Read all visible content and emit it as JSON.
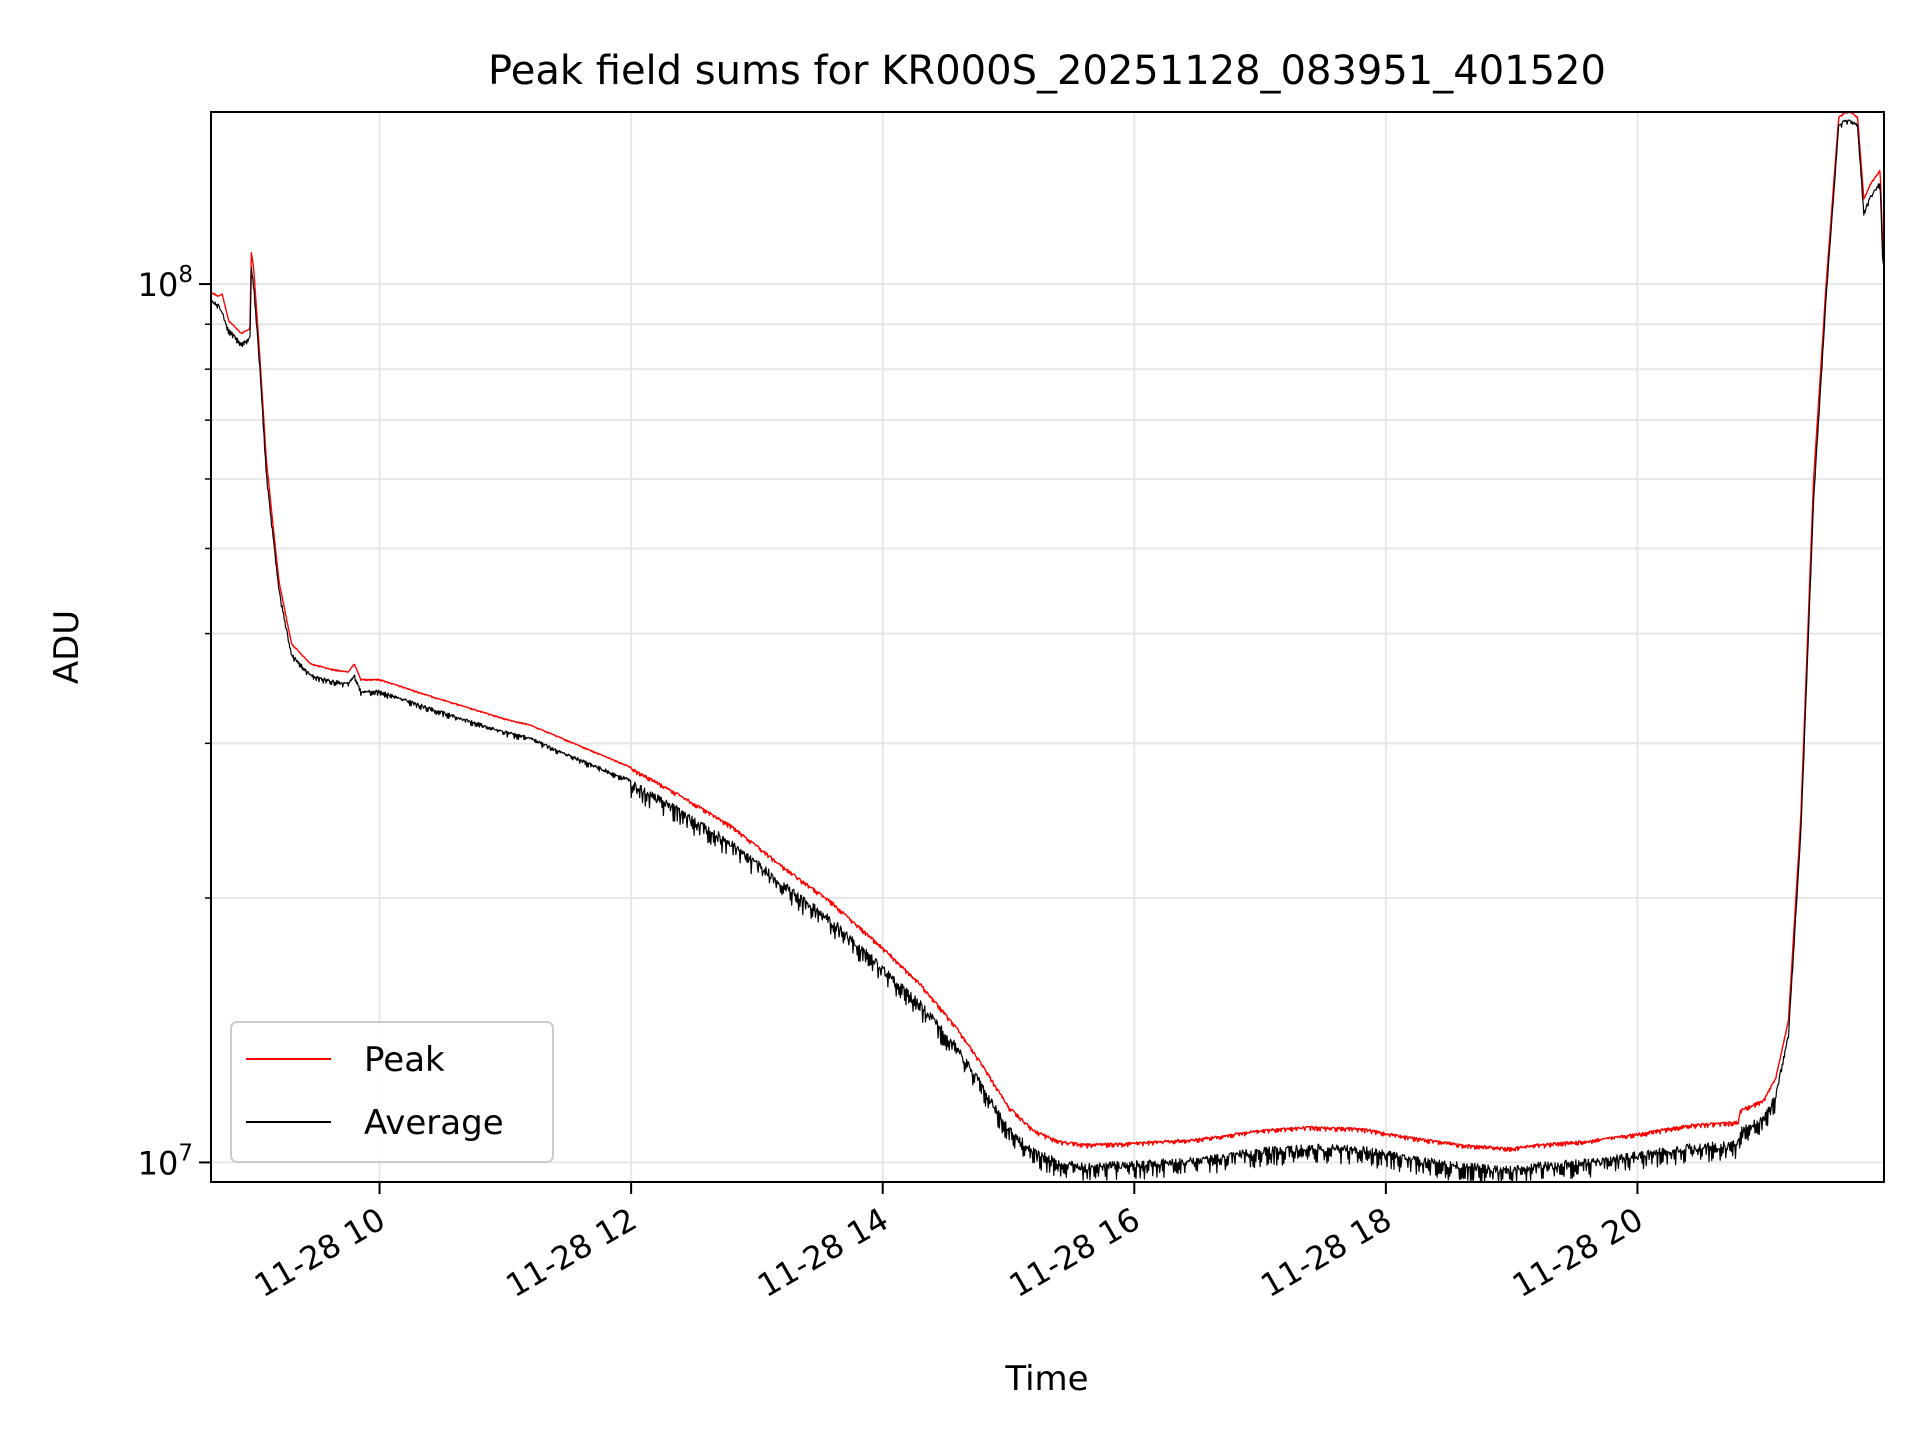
{
  "chart_data": {
    "type": "line",
    "title": "Peak field sums for KR000S_20251128_083951_401520",
    "xlabel": "Time",
    "ylabel": "ADU",
    "yscale": "log",
    "ylim": [
      9500000,
      157000000
    ],
    "xlim_hours": [
      8.66,
      21.96
    ],
    "grid": true,
    "legend_position": "lower-left",
    "x_ticks": [
      {
        "hour": 10,
        "label": "11-28 10"
      },
      {
        "hour": 12,
        "label": "11-28 12"
      },
      {
        "hour": 14,
        "label": "11-28 14"
      },
      {
        "hour": 16,
        "label": "11-28 16"
      },
      {
        "hour": 18,
        "label": "11-28 18"
      },
      {
        "hour": 20,
        "label": "11-28 20"
      }
    ],
    "y_major_ticks": [
      {
        "value": 10000000,
        "base": "10",
        "exp": "7"
      },
      {
        "value": 100000000,
        "base": "10",
        "exp": "8"
      }
    ],
    "y_minor_ticks": [
      20000000,
      30000000,
      40000000,
      50000000,
      60000000,
      70000000,
      80000000,
      90000000
    ],
    "series": [
      {
        "name": "Peak",
        "color": "#ff0000",
        "x_hours": [
          8.66,
          8.72,
          8.75,
          8.8,
          8.9,
          8.97,
          8.98,
          9.0,
          9.05,
          9.1,
          9.2,
          9.3,
          9.45,
          9.6,
          9.75,
          9.8,
          9.85,
          10.0,
          10.4,
          11.0,
          11.2,
          11.6,
          12.0,
          12.4,
          12.8,
          13.2,
          13.6,
          14.0,
          14.3,
          14.6,
          14.8,
          15.0,
          15.2,
          15.4,
          15.6,
          16.0,
          16.5,
          17.0,
          17.4,
          17.8,
          18.2,
          18.6,
          19.0,
          19.2,
          19.4,
          19.6,
          20.0,
          20.4,
          20.8,
          20.82,
          21.0,
          21.1,
          21.2,
          21.3,
          21.4,
          21.5,
          21.6,
          21.65,
          21.7,
          21.75,
          21.8,
          21.85,
          21.9,
          21.93,
          21.95
        ],
        "y": [
          98000000,
          97000000,
          97500000,
          91000000,
          88000000,
          89000000,
          109000000,
          104000000,
          82000000,
          63000000,
          46000000,
          39000000,
          37000000,
          36500000,
          36200000,
          37000000,
          35500000,
          35500000,
          34000000,
          32000000,
          31500000,
          29800000,
          28200000,
          26200000,
          24200000,
          21800000,
          19800000,
          17600000,
          16000000,
          14200000,
          12900000,
          11600000,
          10900000,
          10600000,
          10500000,
          10550000,
          10650000,
          10900000,
          11000000,
          10950000,
          10700000,
          10500000,
          10400000,
          10500000,
          10550000,
          10600000,
          10800000,
          11050000,
          11150000,
          11500000,
          11800000,
          12500000,
          14500000,
          25000000,
          60000000,
          100000000,
          155000000,
          157000000,
          157000000,
          155000000,
          125000000,
          130000000,
          133000000,
          135000000,
          110000000
        ],
        "noise": 0.012
      },
      {
        "name": "Average",
        "color": "#000000",
        "x_hours": [
          8.66,
          8.72,
          8.75,
          8.8,
          8.9,
          8.97,
          8.98,
          9.0,
          9.05,
          9.1,
          9.2,
          9.3,
          9.45,
          9.6,
          9.75,
          9.8,
          9.85,
          10.0,
          10.4,
          11.0,
          11.2,
          11.6,
          12.0,
          12.4,
          12.8,
          13.2,
          13.6,
          14.0,
          14.3,
          14.6,
          14.8,
          15.0,
          15.2,
          15.4,
          15.6,
          16.0,
          16.5,
          17.0,
          17.4,
          17.8,
          18.2,
          18.6,
          19.0,
          19.2,
          19.4,
          19.6,
          20.0,
          20.4,
          20.8,
          20.82,
          21.0,
          21.1,
          21.2,
          21.3,
          21.4,
          21.5,
          21.6,
          21.65,
          21.7,
          21.75,
          21.8,
          21.85,
          21.9,
          21.93,
          21.95
        ],
        "y": [
          96000000,
          95000000,
          93000000,
          89000000,
          86000000,
          87000000,
          105000000,
          100000000,
          80000000,
          61000000,
          45000000,
          38000000,
          36000000,
          35500000,
          35200000,
          36000000,
          34500000,
          34500000,
          33000000,
          31000000,
          30500000,
          28800000,
          27300000,
          25300000,
          23300000,
          21000000,
          19000000,
          16800000,
          15300000,
          13600000,
          12300000,
          11000000,
          10400000,
          10100000,
          10000000,
          10050000,
          10150000,
          10400000,
          10500000,
          10450000,
          10200000,
          10000000,
          9900000,
          10000000,
          10050000,
          10100000,
          10300000,
          10500000,
          10600000,
          11000000,
          11300000,
          12000000,
          14000000,
          24000000,
          57000000,
          97000000,
          152000000,
          154000000,
          154000000,
          152000000,
          121000000,
          126000000,
          129000000,
          131000000,
          106000000
        ],
        "noise": 0.05
      }
    ]
  }
}
